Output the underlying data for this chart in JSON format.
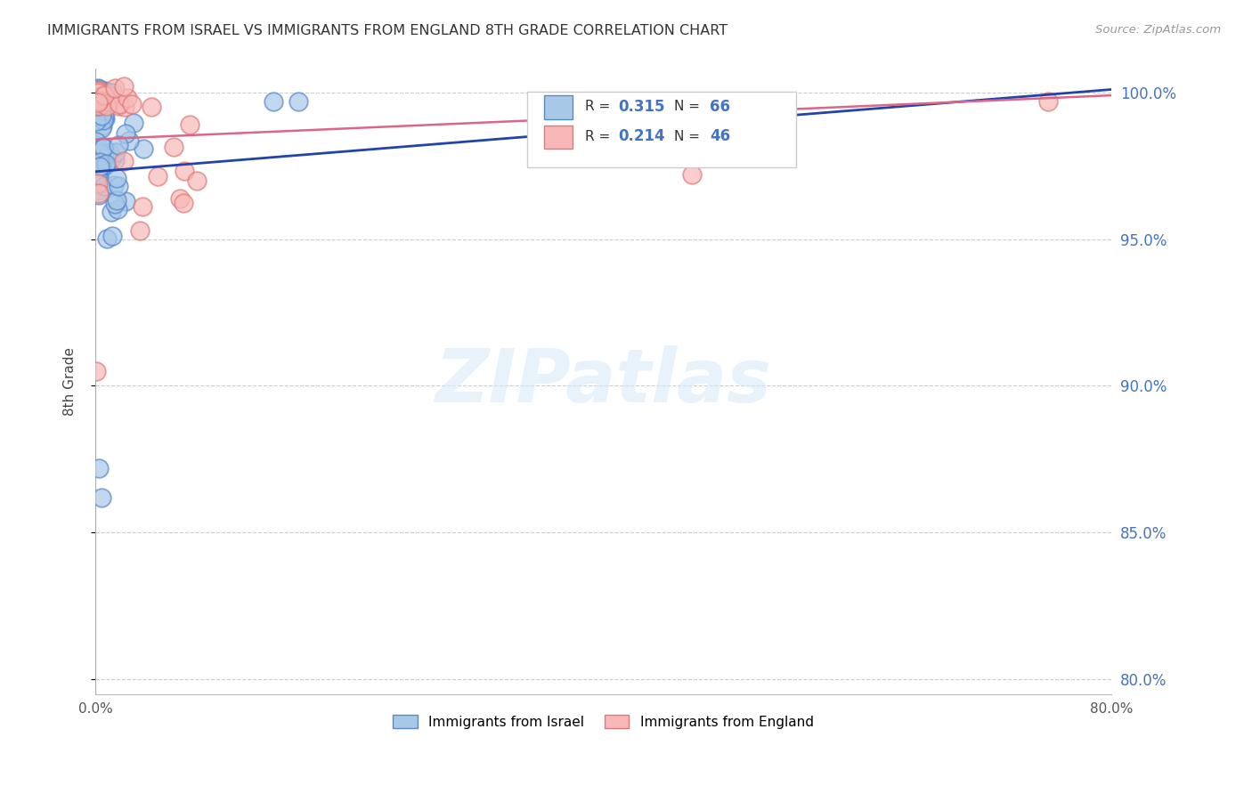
{
  "title": "IMMIGRANTS FROM ISRAEL VS IMMIGRANTS FROM ENGLAND 8TH GRADE CORRELATION CHART",
  "source": "Source: ZipAtlas.com",
  "ylabel": "8th Grade",
  "xlim": [
    0.0,
    0.8
  ],
  "ylim": [
    0.795,
    1.008
  ],
  "yticks": [
    0.8,
    0.85,
    0.9,
    0.95,
    1.0
  ],
  "ytick_labels": [
    "80.0%",
    "85.0%",
    "90.0%",
    "95.0%",
    "100.0%"
  ],
  "israel_color_face": "#a8c8e8",
  "israel_color_edge": "#5588cc",
  "england_color_face": "#f8b8b8",
  "england_color_edge": "#e07878",
  "israel_line_color": "#2244aa",
  "england_line_color": "#dd6688",
  "israel_R": "0.315",
  "israel_N": "66",
  "england_R": "0.214",
  "england_N": "46",
  "watermark": "ZIPatlas",
  "background_color": "#ffffff",
  "grid_color": "#cccccc",
  "legend_israel": "Immigrants from Israel",
  "legend_england": "Immigrants from England",
  "israel_trend_x": [
    0.0,
    0.8
  ],
  "israel_trend_y": [
    0.973,
    1.001
  ],
  "england_trend_x": [
    0.0,
    0.8
  ],
  "england_trend_y": [
    0.984,
    0.999
  ]
}
